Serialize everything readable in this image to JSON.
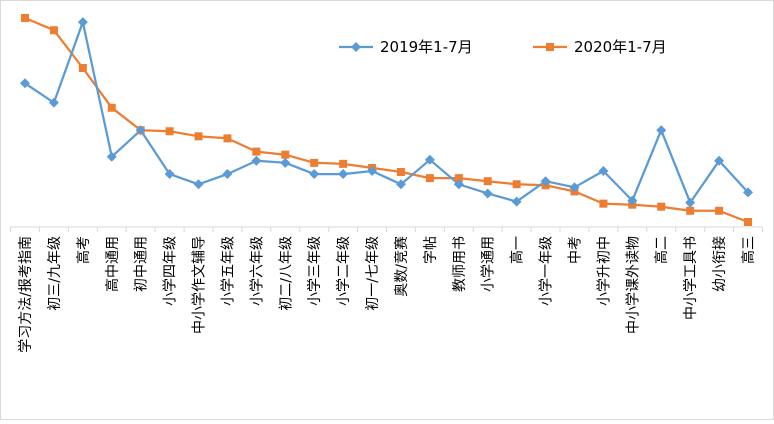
{
  "chart_data": {
    "type": "line",
    "title": "",
    "xlabel": "",
    "ylabel": "",
    "grid": false,
    "legend_position": "top-right",
    "categories": [
      "学习方法/报考指南",
      "初三/九年级",
      "高考",
      "高中通用",
      "初中通用",
      "小学四年级",
      "中小学作文辅导",
      "小学五年级",
      "小学六年级",
      "初二/八年级",
      "小学三年级",
      "小学二年级",
      "初一/七年级",
      "奥数/竞赛",
      "字帖",
      "教师用书",
      "小学通用",
      "高一",
      "小学一年级",
      "中考",
      "小学升初中",
      "中小学课外读物",
      "高二",
      "中小学工具书",
      "幼小衔接",
      "高三"
    ],
    "ylim": [
      0,
      100
    ],
    "series": [
      {
        "name": "2019年1-7月",
        "color": "#5b9bd5",
        "marker": "diamond",
        "values": [
          68,
          58.5,
          98,
          32,
          45,
          23.5,
          18.5,
          23.5,
          30,
          29,
          23.5,
          23.5,
          25,
          18.5,
          30.5,
          18.5,
          14,
          10,
          20,
          17,
          25,
          10.5,
          45,
          9.5,
          30,
          14.5
        ]
      },
      {
        "name": "2020年1-7月",
        "color": "#ed7d31",
        "marker": "square",
        "values": [
          100,
          94,
          75.5,
          56,
          45,
          44.5,
          42,
          41,
          34.5,
          33,
          29,
          28.5,
          26.5,
          24.5,
          21.5,
          21.5,
          20,
          18.5,
          18,
          15,
          9,
          8.5,
          7.5,
          5.5,
          5.5,
          0
        ]
      }
    ]
  }
}
